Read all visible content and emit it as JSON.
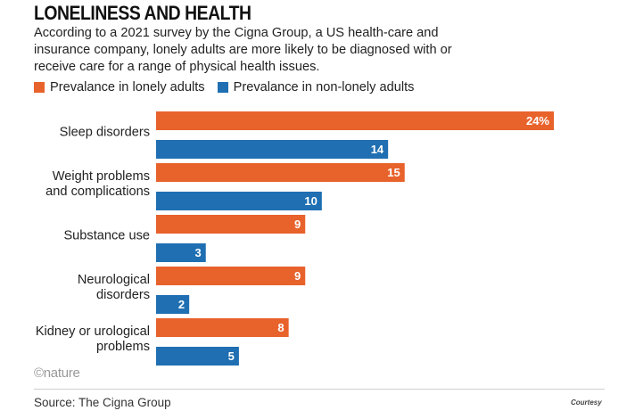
{
  "header": {
    "title": "LONELINESS AND HEALTH",
    "subtitle": "According to a 2021 survey by the Cigna Group, a US health-care and insurance company, lonely adults are more likely to be diagnosed with or receive care for a range of physical health issues."
  },
  "legend": [
    {
      "label": "Prevalance in lonely adults",
      "color": "#e8622c"
    },
    {
      "label": "Prevalance in non-lonely adults",
      "color": "#1f6fb2"
    }
  ],
  "chart_data": {
    "type": "bar",
    "orientation": "horizontal",
    "categories": [
      [
        "Sleep disorders"
      ],
      [
        "Weight problems",
        "and complications"
      ],
      [
        "Substance use"
      ],
      [
        "Neurological",
        "disorders"
      ],
      [
        "Kidney or urological",
        "problems"
      ]
    ],
    "series": [
      {
        "name": "Prevalance in lonely adults",
        "color": "#e8622c",
        "values": [
          24,
          15,
          9,
          9,
          8
        ],
        "labels": [
          "24%",
          "15",
          "9",
          "9",
          "8"
        ]
      },
      {
        "name": "Prevalance in non-lonely adults",
        "color": "#1f6fb2",
        "values": [
          14,
          10,
          3,
          2,
          5
        ],
        "labels": [
          "14",
          "10",
          "3",
          "2",
          "5"
        ]
      }
    ],
    "xlim": [
      0,
      24
    ],
    "grid": false
  },
  "footer": {
    "logo": "©nature",
    "source": "Source: The Cigna Group",
    "credit": "Courtesy"
  }
}
